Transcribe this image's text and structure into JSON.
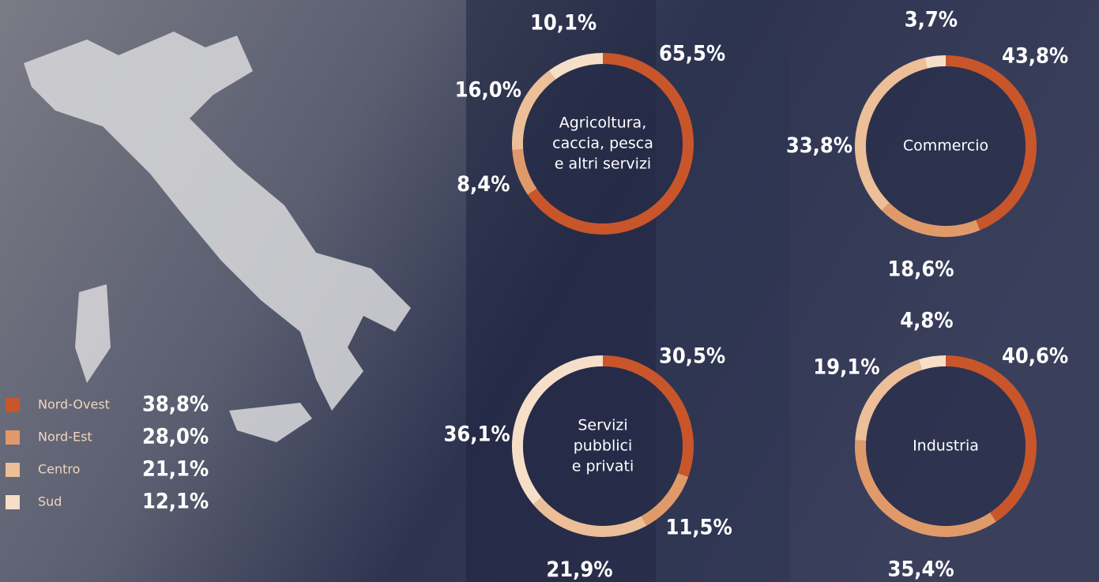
{
  "legend": [
    {
      "name": "Nord-Ovest",
      "color": "#c8562a",
      "share": "38,8%"
    },
    {
      "name": "Nord-Est",
      "color": "#e09a6a",
      "share": "28,0%"
    },
    {
      "name": "Centro",
      "color": "#ecbf98",
      "share": "21,1%"
    },
    {
      "name": "Sud",
      "color": "#f5dfc8",
      "share": "12,1%"
    }
  ],
  "chart_data": [
    {
      "type": "donut",
      "label": [
        "Agricoltura,",
        "caccia, pesca",
        "e altri servizi"
      ],
      "values": [
        65.5,
        8.4,
        16.0,
        10.1
      ],
      "value_labels": [
        "65,5%",
        "8,4%",
        "16,0%",
        "10,1%"
      ]
    },
    {
      "type": "donut",
      "label": [
        "Commercio"
      ],
      "values": [
        43.8,
        18.6,
        33.8,
        3.7
      ],
      "value_labels": [
        "43,8%",
        "18,6%",
        "33,8%",
        "3,7%"
      ]
    },
    {
      "type": "donut",
      "label": [
        "Servizi",
        "pubblici",
        "e privati"
      ],
      "values": [
        30.5,
        11.5,
        21.9,
        36.1
      ],
      "value_labels": [
        "30,5%",
        "11,5%",
        "21,9%",
        "36,1%"
      ]
    },
    {
      "type": "donut",
      "label": [
        "Industria"
      ],
      "values": [
        40.6,
        35.4,
        19.1,
        4.8
      ],
      "value_labels": [
        "40,6%",
        "35,4%",
        "19,1%",
        "4,8%"
      ]
    }
  ]
}
